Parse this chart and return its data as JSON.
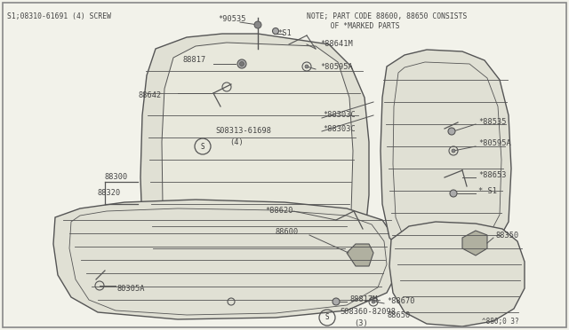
{
  "bg_color": "#f2f2ea",
  "line_color": "#555555",
  "text_color": "#444444",
  "title_note_line1": "NOTE; PART CODE 88600, 88650 CONSISTS",
  "title_note_line2": "   OF *MARKED PARTS",
  "top_left_label": "S1;08310-61691 (4) SCREW",
  "bottom_right_label": "^880;0 3?",
  "figw": 6.4,
  "figh": 3.72,
  "dpi": 100
}
